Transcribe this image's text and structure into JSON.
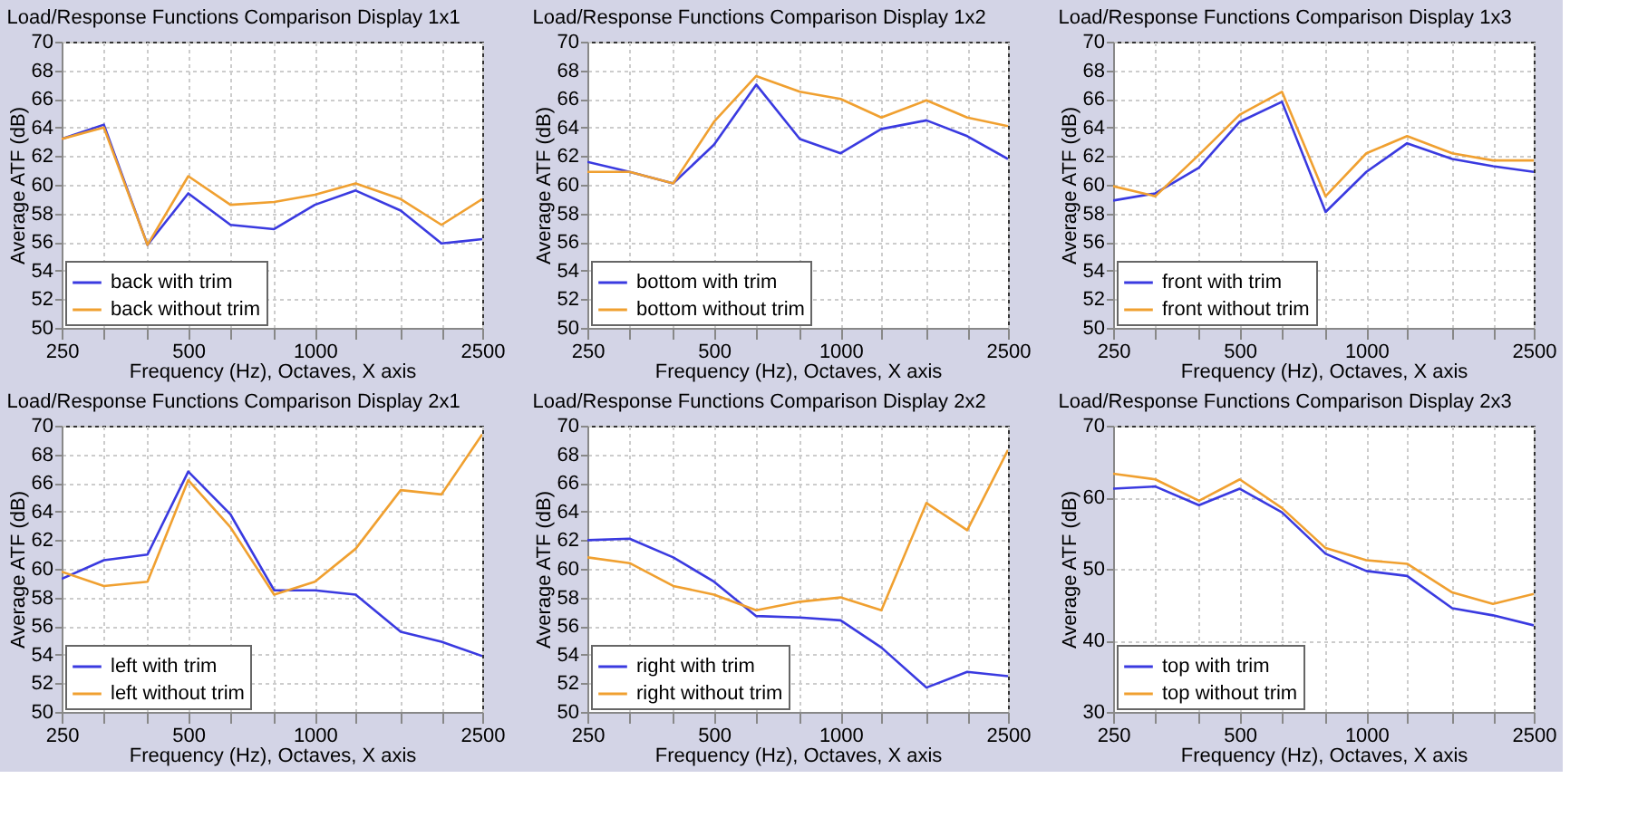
{
  "chart_data": [
    {
      "type": "line",
      "title": "Load/Response Functions Comparison Display 1x1",
      "xlabel": "Frequency (Hz), Octaves, X axis",
      "ylabel": "Average ATF (dB)",
      "log": "x",
      "grid": true,
      "legend": "bottom left",
      "xlim": [
        250,
        2500
      ],
      "xticks": [
        250,
        {
          "value": 315,
          "label": null
        },
        {
          "value": 400,
          "label": null
        },
        500,
        {
          "value": 630,
          "label": null
        },
        {
          "value": 800,
          "label": null
        },
        1000,
        {
          "value": 1250,
          "label": null
        },
        {
          "value": 1600,
          "label": null
        },
        {
          "value": 2000,
          "label": null
        },
        2500
      ],
      "ylim": [
        50,
        70
      ],
      "yticks": [
        50,
        52,
        54,
        56,
        58,
        60,
        62,
        64,
        66,
        68,
        70
      ],
      "x": [
        250,
        315,
        400,
        500,
        630,
        800,
        1000,
        1250,
        1600,
        2000,
        2500
      ],
      "series": [
        {
          "name": "back with trim",
          "color": "#3a3ae0",
          "values": [
            63.2,
            64.2,
            55.8,
            59.4,
            57.2,
            56.9,
            58.6,
            59.6,
            58.2,
            55.9,
            56.2
          ]
        },
        {
          "name": "back without trim",
          "color": "#f0a030",
          "values": [
            63.2,
            64.0,
            55.8,
            60.6,
            58.6,
            58.8,
            59.3,
            60.1,
            59.0,
            57.2,
            59.0
          ]
        }
      ]
    },
    {
      "type": "line",
      "title": "Load/Response Functions Comparison Display 1x2",
      "xlabel": "Frequency (Hz), Octaves, X axis",
      "ylabel": "Average ATF (dB)",
      "log": "x",
      "grid": true,
      "legend": "bottom left",
      "xlim": [
        250,
        2500
      ],
      "xticks": [
        250,
        {
          "value": 315,
          "label": null
        },
        {
          "value": 400,
          "label": null
        },
        500,
        {
          "value": 630,
          "label": null
        },
        {
          "value": 800,
          "label": null
        },
        1000,
        {
          "value": 1250,
          "label": null
        },
        {
          "value": 1600,
          "label": null
        },
        {
          "value": 2000,
          "label": null
        },
        2500
      ],
      "ylim": [
        50,
        70
      ],
      "yticks": [
        50,
        52,
        54,
        56,
        58,
        60,
        62,
        64,
        66,
        68,
        70
      ],
      "x": [
        250,
        315,
        400,
        500,
        630,
        800,
        1000,
        1250,
        1600,
        2000,
        2500
      ],
      "series": [
        {
          "name": "bottom with trim",
          "color": "#3a3ae0",
          "values": [
            61.6,
            60.9,
            60.1,
            62.8,
            67.0,
            63.2,
            62.2,
            63.9,
            64.5,
            63.4,
            61.8
          ]
        },
        {
          "name": "bottom without trim",
          "color": "#f0a030",
          "values": [
            60.9,
            60.9,
            60.1,
            64.4,
            67.6,
            66.5,
            66.0,
            64.7,
            65.9,
            64.7,
            64.1
          ]
        }
      ]
    },
    {
      "type": "line",
      "title": "Load/Response Functions Comparison Display 1x3",
      "xlabel": "Frequency (Hz), Octaves, X axis",
      "ylabel": "Average ATF (dB)",
      "log": "x",
      "grid": true,
      "legend": "bottom left",
      "xlim": [
        250,
        2500
      ],
      "xticks": [
        250,
        {
          "value": 315,
          "label": null
        },
        {
          "value": 400,
          "label": null
        },
        500,
        {
          "value": 630,
          "label": null
        },
        {
          "value": 800,
          "label": null
        },
        1000,
        {
          "value": 1250,
          "label": null
        },
        {
          "value": 1600,
          "label": null
        },
        {
          "value": 2000,
          "label": null
        },
        2500
      ],
      "ylim": [
        50,
        70
      ],
      "yticks": [
        50,
        52,
        54,
        56,
        58,
        60,
        62,
        64,
        66,
        68,
        70
      ],
      "x": [
        250,
        315,
        400,
        500,
        630,
        800,
        1000,
        1250,
        1600,
        2000,
        2500
      ],
      "series": [
        {
          "name": "front with trim",
          "color": "#3a3ae0",
          "values": [
            58.9,
            59.4,
            61.2,
            64.4,
            65.8,
            58.1,
            60.9,
            62.9,
            61.8,
            61.3,
            60.9
          ]
        },
        {
          "name": "front without trim",
          "color": "#f0a030",
          "values": [
            59.9,
            59.2,
            62.1,
            64.9,
            66.5,
            59.2,
            62.2,
            63.4,
            62.2,
            61.7,
            61.7
          ]
        }
      ]
    },
    {
      "type": "line",
      "title": "Load/Response Functions Comparison Display 2x1",
      "xlabel": "Frequency (Hz), Octaves, X axis",
      "ylabel": "Average ATF (dB)",
      "log": "x",
      "grid": true,
      "legend": "bottom left",
      "xlim": [
        250,
        2500
      ],
      "xticks": [
        250,
        {
          "value": 315,
          "label": null
        },
        {
          "value": 400,
          "label": null
        },
        500,
        {
          "value": 630,
          "label": null
        },
        {
          "value": 800,
          "label": null
        },
        1000,
        {
          "value": 1250,
          "label": null
        },
        {
          "value": 1600,
          "label": null
        },
        {
          "value": 2000,
          "label": null
        },
        2500
      ],
      "ylim": [
        50,
        70
      ],
      "yticks": [
        50,
        52,
        54,
        56,
        58,
        60,
        62,
        64,
        66,
        68,
        70
      ],
      "x": [
        250,
        315,
        400,
        500,
        630,
        800,
        1000,
        1250,
        1600,
        2000,
        2500
      ],
      "series": [
        {
          "name": "left with trim",
          "color": "#3a3ae0",
          "values": [
            59.3,
            60.6,
            61.0,
            66.8,
            63.8,
            58.5,
            58.5,
            58.2,
            55.6,
            54.9,
            53.9
          ]
        },
        {
          "name": "left without trim",
          "color": "#f0a030",
          "values": [
            59.8,
            58.8,
            59.1,
            66.2,
            62.9,
            58.2,
            59.1,
            61.4,
            65.5,
            65.2,
            69.4
          ]
        }
      ]
    },
    {
      "type": "line",
      "title": "Load/Response Functions Comparison Display 2x2",
      "xlabel": "Frequency (Hz), Octaves, X axis",
      "ylabel": "Average ATF (dB)",
      "log": "x",
      "grid": true,
      "legend": "bottom left",
      "xlim": [
        250,
        2500
      ],
      "xticks": [
        250,
        {
          "value": 315,
          "label": null
        },
        {
          "value": 400,
          "label": null
        },
        500,
        {
          "value": 630,
          "label": null
        },
        {
          "value": 800,
          "label": null
        },
        1000,
        {
          "value": 1250,
          "label": null
        },
        {
          "value": 1600,
          "label": null
        },
        {
          "value": 2000,
          "label": null
        },
        2500
      ],
      "ylim": [
        50,
        70
      ],
      "yticks": [
        50,
        52,
        54,
        56,
        58,
        60,
        62,
        64,
        66,
        68,
        70
      ],
      "x": [
        250,
        315,
        400,
        500,
        630,
        800,
        1000,
        1250,
        1600,
        2000,
        2500
      ],
      "series": [
        {
          "name": "right with trim",
          "color": "#3a3ae0",
          "values": [
            62.0,
            62.1,
            60.8,
            59.1,
            56.7,
            56.6,
            56.4,
            54.5,
            51.7,
            52.8,
            52.5
          ]
        },
        {
          "name": "right without trim",
          "color": "#f0a030",
          "values": [
            60.8,
            60.4,
            58.8,
            58.2,
            57.1,
            57.7,
            58.0,
            57.1,
            64.6,
            62.7,
            68.3
          ]
        }
      ]
    },
    {
      "type": "line",
      "title": "Load/Response Functions Comparison Display 2x3",
      "xlabel": "Frequency (Hz), Octaves, X axis",
      "ylabel": "Average ATF (dB)",
      "log": "x",
      "grid": true,
      "legend": "bottom left",
      "xlim": [
        250,
        2500
      ],
      "xticks": [
        250,
        {
          "value": 315,
          "label": null
        },
        {
          "value": 400,
          "label": null
        },
        500,
        {
          "value": 630,
          "label": null
        },
        {
          "value": 800,
          "label": null
        },
        1000,
        {
          "value": 1250,
          "label": null
        },
        {
          "value": 1600,
          "label": null
        },
        {
          "value": 2000,
          "label": null
        },
        2500
      ],
      "ylim": [
        30,
        70
      ],
      "yticks": [
        30,
        40,
        50,
        60,
        70
      ],
      "x": [
        250,
        315,
        400,
        500,
        630,
        800,
        1000,
        1250,
        1600,
        2000,
        2500
      ],
      "series": [
        {
          "name": "top with trim",
          "color": "#3a3ae0",
          "values": [
            61.2,
            61.5,
            58.9,
            61.2,
            57.9,
            52.1,
            49.7,
            49.0,
            44.5,
            43.5,
            42.1
          ]
        },
        {
          "name": "top without trim",
          "color": "#f0a030",
          "values": [
            63.3,
            62.5,
            59.5,
            62.5,
            58.5,
            52.9,
            51.2,
            50.7,
            46.7,
            45.1,
            46.5
          ]
        }
      ]
    }
  ]
}
